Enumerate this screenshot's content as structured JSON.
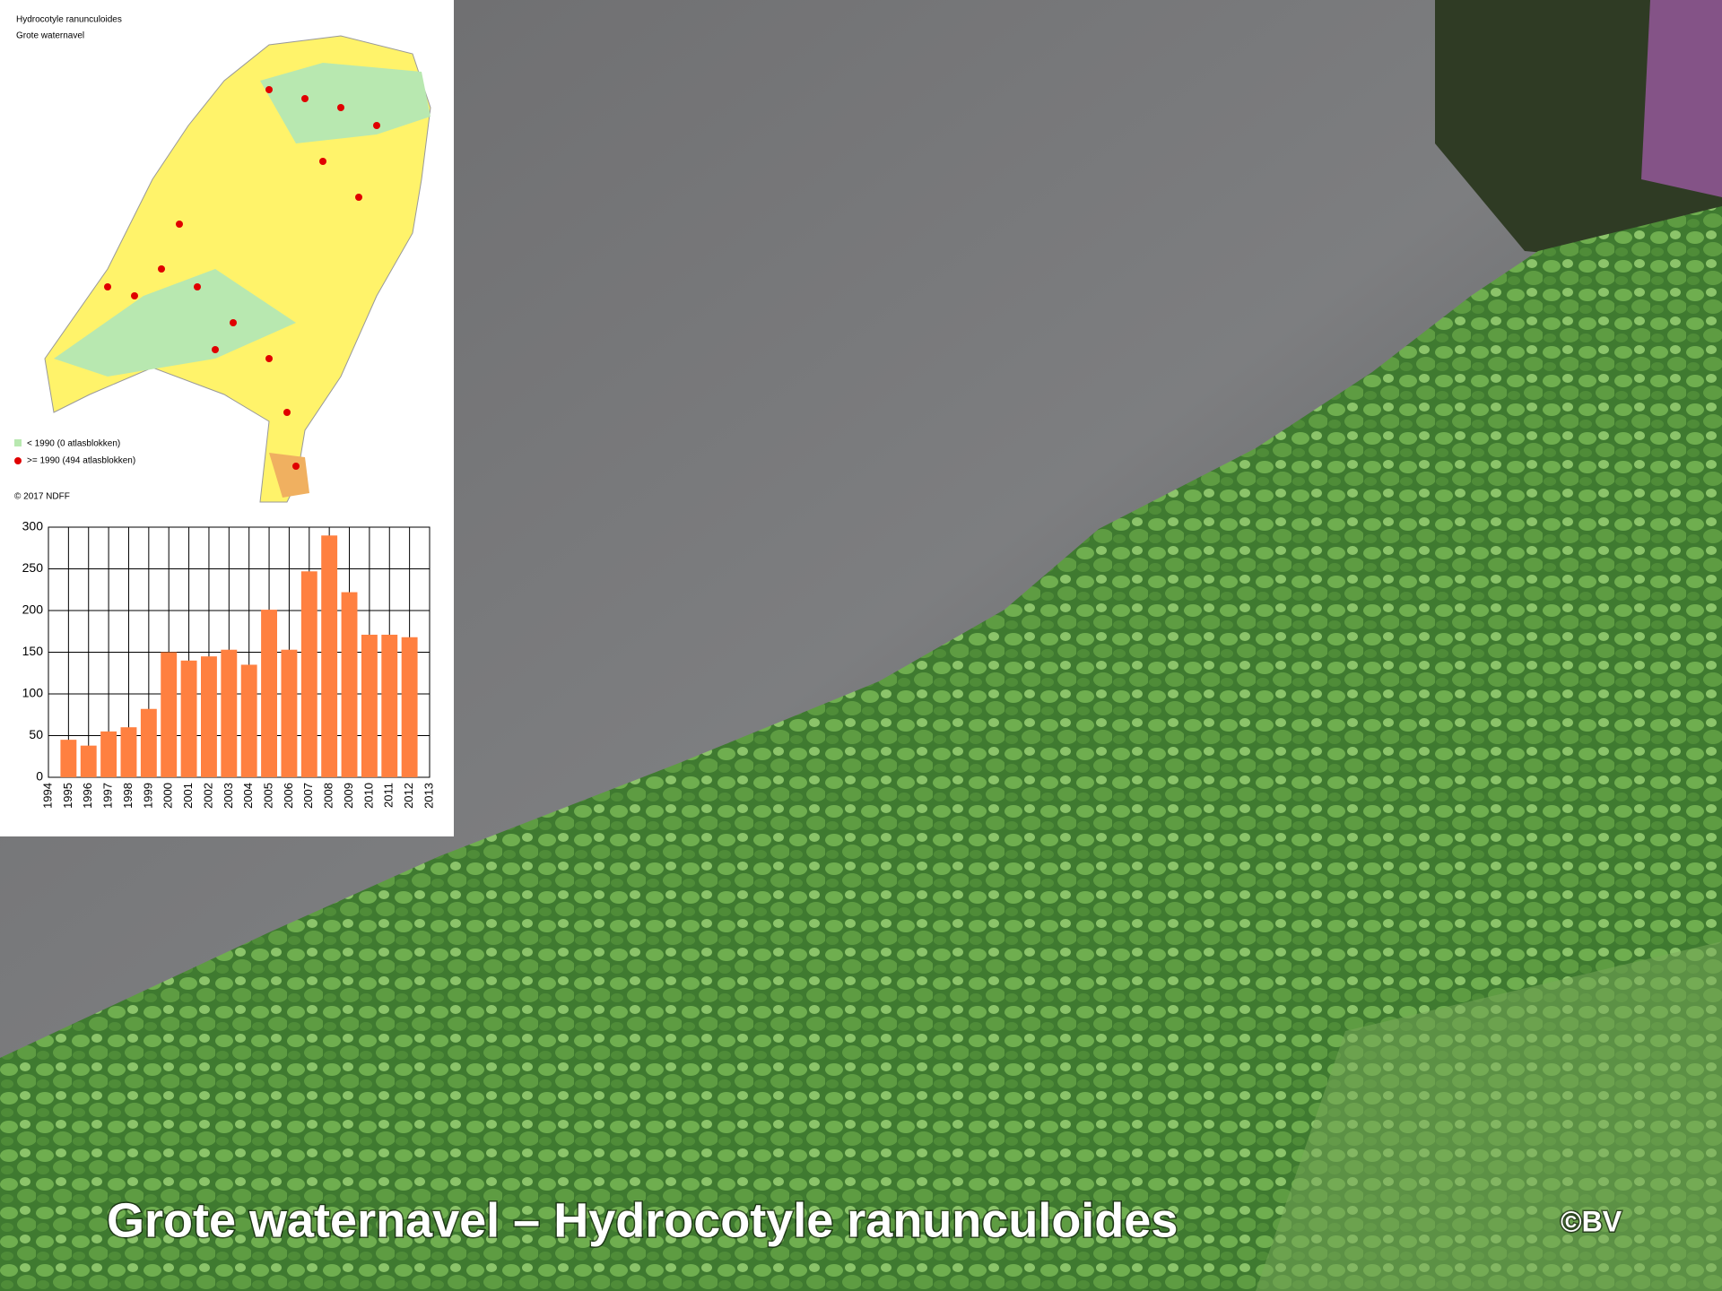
{
  "map": {
    "title": "Hydrocotyle ranunculoides",
    "subtitle": "Grote waternavel",
    "legend": [
      "< 1990 (0 atlasblokken)",
      ">= 1990 (494 atlasblokken)"
    ],
    "copyright": "© 2017 NDFF"
  },
  "chart_data": {
    "type": "bar",
    "categories": [
      "1994",
      "1995",
      "1996",
      "1997",
      "1998",
      "1999",
      "2000",
      "2001",
      "2002",
      "2003",
      "2004",
      "2005",
      "2006",
      "2007",
      "2008",
      "2009",
      "2010",
      "2011",
      "2012",
      "2013"
    ],
    "values": [
      null,
      45,
      38,
      55,
      60,
      82,
      150,
      140,
      145,
      153,
      135,
      201,
      153,
      247,
      290,
      222,
      171,
      171,
      168,
      null
    ],
    "color": "#ff8040",
    "ylim": [
      0,
      300
    ],
    "yticks": [
      0,
      50,
      100,
      150,
      200,
      250,
      300
    ],
    "grid": true
  },
  "caption": {
    "title": "Grote waternavel – Hydrocotyle ranunculoides",
    "credit": "©BV"
  }
}
